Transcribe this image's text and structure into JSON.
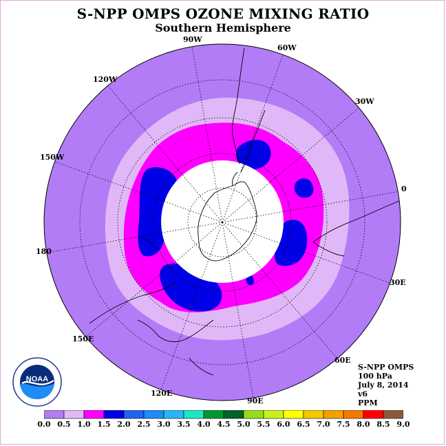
{
  "title": "S-NPP OMPS OZONE MIXING RATIO",
  "subtitle": "Southern Hemisphere",
  "longitude_labels": [
    "90W",
    "60W",
    "30W",
    "0",
    "30E",
    "60E",
    "90E",
    "120E",
    "150E",
    "180",
    "150W",
    "120W"
  ],
  "info": {
    "instrument": "S-NPP OMPS",
    "level": "100 hPa",
    "date": "July 8, 2014",
    "version": "v6",
    "units": "PPM"
  },
  "logo": {
    "text": "NOAA",
    "ring_text": "NATIONAL OCEANIC AND ATMOSPHERIC ADMINISTRATION · U.S. DEPARTMENT OF COMMERCE"
  },
  "colorbar": {
    "ticks": [
      "0.0",
      "0.5",
      "1.0",
      "1.5",
      "2.0",
      "2.5",
      "3.0",
      "3.5",
      "4.0",
      "4.5",
      "5.0",
      "5.5",
      "6.0",
      "6.5",
      "7.0",
      "7.5",
      "8.0",
      "8.5",
      "9.0"
    ],
    "colors": [
      "#b27cf7",
      "#e0b8f7",
      "#ff00ff",
      "#0000e6",
      "#1e64f0",
      "#1e8cf5",
      "#28b4f5",
      "#1ee6c8",
      "#009632",
      "#006428",
      "#96dc1e",
      "#c8f01e",
      "#ffff00",
      "#f5c800",
      "#f5a000",
      "#f57800",
      "#ff0000",
      "#8b5a3c"
    ]
  },
  "chart_data": {
    "type": "heatmap",
    "projection": "south-polar-stereographic",
    "variable": "ozone mixing ratio",
    "pressure_level": "100 hPa",
    "units": "PPM",
    "value_range": [
      0.0,
      9.0
    ],
    "observed_bins": [
      {
        "range": [
          0.0,
          0.5
        ],
        "color": "#b27cf7",
        "region": "outer mid-latitudes"
      },
      {
        "range": [
          0.5,
          1.0
        ],
        "color": "#e0b8f7",
        "region": "ring near 50S-60S"
      },
      {
        "range": [
          1.0,
          1.5
        ],
        "color": "#ff00ff",
        "region": "ring around the polar vortex"
      },
      {
        "range": [
          1.5,
          2.0
        ],
        "color": "#0000e6",
        "region": "patches at the vortex edge"
      }
    ],
    "no_data_region": "polar night region over Antarctica (white)"
  }
}
